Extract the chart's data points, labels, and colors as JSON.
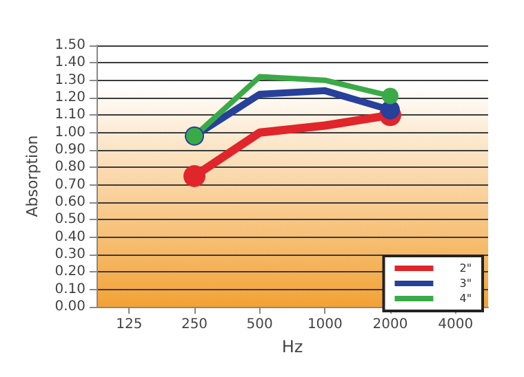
{
  "chart_data": {
    "type": "line",
    "xlabel": "Hz",
    "ylabel": "Absorption",
    "categories": [
      "125",
      "250",
      "500",
      "1000",
      "2000",
      "4000"
    ],
    "series": [
      {
        "name": "2\"",
        "color": "#e0252b",
        "values": [
          null,
          0.75,
          1.0,
          1.04,
          1.1,
          null
        ]
      },
      {
        "name": "3\"",
        "color": "#27409a",
        "values": [
          null,
          0.98,
          1.22,
          1.24,
          1.13,
          null
        ]
      },
      {
        "name": "4\"",
        "color": "#3aaa48",
        "values": [
          null,
          0.98,
          1.32,
          1.3,
          1.21,
          null
        ]
      }
    ],
    "ylim": [
      0,
      1.5
    ],
    "yticks": [
      {
        "value": 0,
        "label": "0.00"
      },
      {
        "value": 0.1,
        "label": "0.10"
      },
      {
        "value": 0.2,
        "label": "0.20"
      },
      {
        "value": 0.3,
        "label": "0.30"
      },
      {
        "value": 0.4,
        "label": "0.40"
      },
      {
        "value": 0.5,
        "label": "0.50"
      },
      {
        "value": 0.6,
        "label": "0.60"
      },
      {
        "value": 0.7,
        "label": "0.70"
      },
      {
        "value": 0.8,
        "label": "0.80"
      },
      {
        "value": 0.9,
        "label": "0.90"
      },
      {
        "value": 1,
        "label": "1.00"
      },
      {
        "value": 1.1,
        "label": "1.10"
      },
      {
        "value": 1.2,
        "label": "1.20"
      },
      {
        "value": 1.3,
        "label": "1.30"
      },
      {
        "value": 1.4,
        "label": "1.40"
      },
      {
        "value": 1.5,
        "label": "1.50"
      }
    ],
    "grid": "y",
    "legend": "bottom right",
    "marker": "circle",
    "line_style": "solid"
  }
}
